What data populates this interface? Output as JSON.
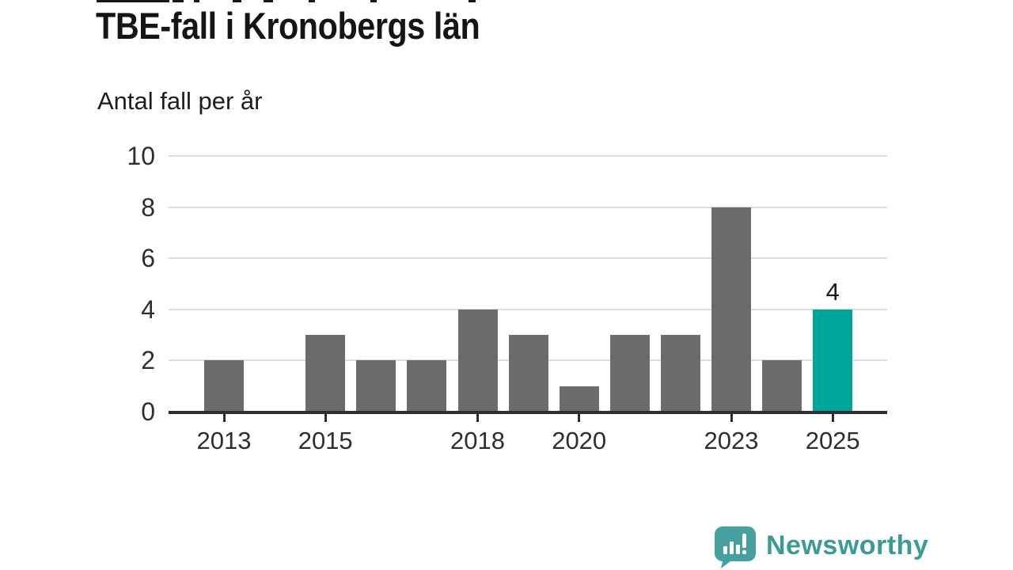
{
  "header": {
    "title": "TBE-fall i Kronobergs län",
    "subtitle": "Antal fall per år"
  },
  "chart_data": {
    "type": "bar",
    "title": "TBE-fall i Kronobergs län",
    "subtitle": "Antal fall per år",
    "categories": [
      "2013",
      "2014",
      "2015",
      "2016",
      "2017",
      "2018",
      "2019",
      "2020",
      "2021",
      "2022",
      "2023",
      "2024",
      "2025"
    ],
    "values": [
      2,
      0,
      3,
      2,
      2,
      4,
      3,
      1,
      3,
      3,
      8,
      2,
      4
    ],
    "x_tick_labels": [
      "2013",
      "2015",
      "2018",
      "2020",
      "2023",
      "2025"
    ],
    "y_ticks": [
      0,
      2,
      4,
      6,
      8,
      10
    ],
    "ylim": [
      0,
      10
    ],
    "xlabel": "",
    "ylabel": "Antal fall per år",
    "grid": "horizontal",
    "legend_position": "none",
    "highlight": {
      "category": "2025",
      "value_label": "4"
    },
    "colors": {
      "bar": "#6d6a6e",
      "highlight": "#00a59a",
      "grid": "#dcdcdc",
      "axis": "#2e2e2e",
      "tick_label": "#2e2e2e"
    }
  },
  "branding": {
    "logo_text": "Newsworthy",
    "logo_icon": "newsworthy-speech-bubble-bar-chart-icon",
    "text_color": "#3a9b96",
    "bubble_color": "#47a0a0"
  }
}
